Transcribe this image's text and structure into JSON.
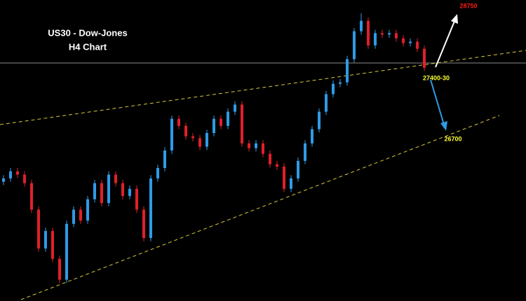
{
  "chart_data": {
    "type": "candlestick",
    "title": "US30 - Dow-Jones",
    "subtitle": "H4 Chart",
    "annotations": [
      {
        "text": "28750",
        "color": "#ff1a1a"
      },
      {
        "text": "27400-30",
        "color": "#ffff33"
      },
      {
        "text": "26700",
        "color": "#ffff33"
      }
    ],
    "up_color": "#2f9be6",
    "down_color": "#e0202a",
    "ylim": [
      24920,
      28100
    ],
    "open": [
      26180,
      26215,
      26290,
      26255,
      26165,
      25885,
      25475,
      25660,
      25365,
      25145,
      25735,
      25885,
      25770,
      25995,
      26165,
      25955,
      26255,
      26165,
      26030,
      26105,
      25885,
      25585,
      26215,
      26325,
      26510,
      26845,
      26770,
      26660,
      26640,
      26550,
      26695,
      26845,
      26770,
      26920,
      26995,
      26585,
      26535,
      26585,
      26475,
      26365,
      26340,
      26105,
      26215,
      26400,
      26585,
      26735,
      26920,
      27105,
      27215,
      27230,
      27475,
      27770,
      27880,
      27620,
      27750,
      27735,
      27750,
      27695,
      27645,
      27660,
      27585
    ],
    "high": [
      26250,
      26325,
      26325,
      26290,
      26200,
      25920,
      25695,
      25695,
      25400,
      25770,
      25920,
      25920,
      26030,
      26200,
      26200,
      26290,
      26290,
      26200,
      26140,
      26140,
      25920,
      26250,
      26360,
      26545,
      26880,
      26880,
      26805,
      26695,
      26675,
      26730,
      26880,
      26880,
      26955,
      27030,
      27030,
      26620,
      26620,
      26620,
      26510,
      26400,
      26375,
      26250,
      26435,
      26620,
      26770,
      26955,
      27140,
      27250,
      27265,
      27510,
      27805,
      27960,
      27915,
      27785,
      27785,
      27785,
      27785,
      27730,
      27695,
      27695,
      27620
    ],
    "low": [
      26145,
      26180,
      26220,
      26130,
      25850,
      25440,
      25440,
      25330,
      25110,
      25110,
      25700,
      25735,
      25735,
      25960,
      25920,
      25920,
      26130,
      25995,
      25995,
      25850,
      25550,
      25550,
      26180,
      26290,
      26475,
      26735,
      26625,
      26605,
      26515,
      26515,
      26660,
      26735,
      26735,
      26885,
      26550,
      26500,
      26500,
      26440,
      26330,
      26305,
      26070,
      26070,
      26180,
      26365,
      26550,
      26700,
      26885,
      27070,
      27180,
      27195,
      27440,
      27735,
      27585,
      27585,
      27700,
      27700,
      27660,
      27610,
      27610,
      27550,
      27350
    ],
    "close": [
      26215,
      26290,
      26255,
      26165,
      25885,
      25475,
      25660,
      25365,
      25145,
      25735,
      25885,
      25770,
      25995,
      26165,
      25955,
      26255,
      26165,
      26030,
      26105,
      25885,
      25585,
      26215,
      26325,
      26510,
      26845,
      26770,
      26660,
      26640,
      26550,
      26695,
      26845,
      26770,
      26920,
      26995,
      26585,
      26535,
      26585,
      26475,
      26365,
      26340,
      26105,
      26215,
      26400,
      26585,
      26735,
      26920,
      27105,
      27215,
      27230,
      27475,
      27770,
      27880,
      27620,
      27750,
      27735,
      27750,
      27695,
      27645,
      27660,
      27585,
      27385
    ]
  }
}
